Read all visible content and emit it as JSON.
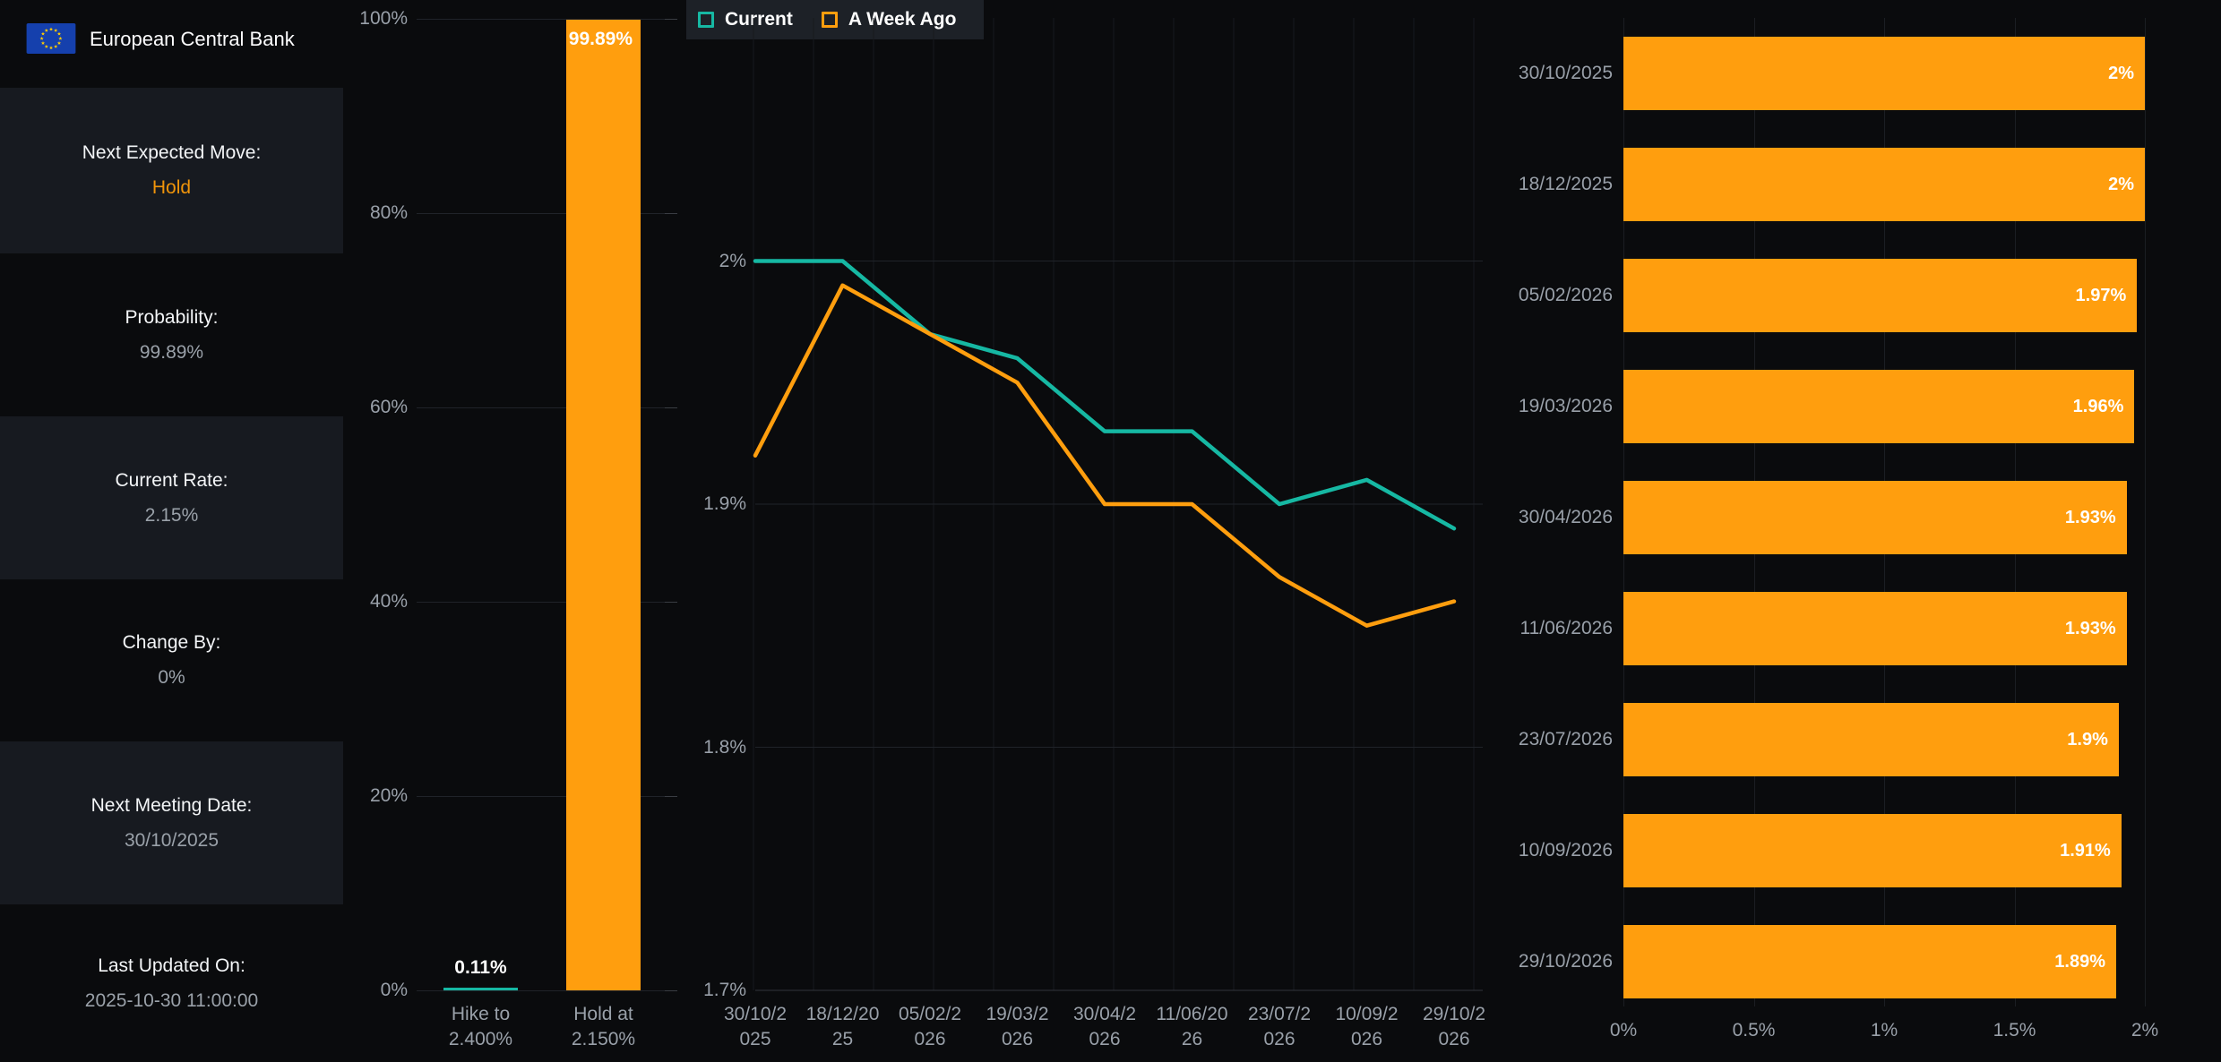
{
  "header": {
    "title": "European Central Bank",
    "flag_icon": "eu-flag-icon"
  },
  "sidebar": {
    "rows": [
      {
        "label": "Next Expected Move:",
        "value": "Hold",
        "value_color": "orange"
      },
      {
        "label": "Probability:",
        "value": "99.89%"
      },
      {
        "label": "Current Rate:",
        "value": "2.15%"
      },
      {
        "label": "Change By:",
        "value": "0%"
      },
      {
        "label": "Next Meeting Date:",
        "value": "30/10/2025"
      },
      {
        "label": "Last Updated On:",
        "value": "2025-10-30 11:00:00"
      }
    ]
  },
  "colors": {
    "teal": "#16b8a3",
    "orange": "#ff9e0e",
    "hold_orange": "#f0940a",
    "page_bg": "#0a0b0d",
    "panel_bg": "#171a20",
    "legend_bg": "#1d2127",
    "white_text": "#f3f5f7",
    "gray_text": "#9aa1a9"
  },
  "chart_data": [
    {
      "id": "next-move-probability",
      "type": "bar",
      "title": "",
      "categories": [
        "Hike to 2.400%",
        "Hold at 2.150%"
      ],
      "category_lines": [
        [
          "Hike to",
          "2.400%"
        ],
        [
          "Hold at",
          "2.150%"
        ]
      ],
      "values": [
        0.11,
        99.89
      ],
      "value_labels": [
        "0.11%",
        "99.89%"
      ],
      "bar_colors": [
        "#16b8a3",
        "#ff9e0e"
      ],
      "y_axis_labels": [
        "100%",
        "80%",
        "60%",
        "40%",
        "20%",
        "0%"
      ],
      "ylim": [
        0,
        100
      ],
      "grid": true
    },
    {
      "id": "rate-expectation-lines",
      "type": "line",
      "title": "",
      "x_labels_wrapped": [
        [
          "30/10/2",
          "025"
        ],
        [
          "18/12/20",
          "25"
        ],
        [
          "05/02/2",
          "026"
        ],
        [
          "19/03/2",
          "026"
        ],
        [
          "30/04/2",
          "026"
        ],
        [
          "11/06/20",
          "26"
        ],
        [
          "23/07/2",
          "026"
        ],
        [
          "10/09/2",
          "026"
        ],
        [
          "29/10/2",
          "026"
        ]
      ],
      "x_categories": [
        "30/10/2025",
        "18/12/2025",
        "05/02/2026",
        "19/03/2026",
        "30/04/2026",
        "11/06/2026",
        "23/07/2026",
        "10/09/2026",
        "29/10/2026"
      ],
      "series": [
        {
          "name": "Current",
          "color": "#16b8a3",
          "values": [
            2.0,
            2.0,
            1.97,
            1.96,
            1.93,
            1.93,
            1.9,
            1.91,
            1.89
          ]
        },
        {
          "name": "A Week Ago",
          "color": "#ff9e0e",
          "values": [
            1.92,
            1.99,
            1.97,
            1.95,
            1.9,
            1.9,
            1.87,
            1.85,
            1.86
          ]
        }
      ],
      "y_ticks": [
        {
          "label": "2%",
          "value": 2.0
        },
        {
          "label": "1.9%",
          "value": 1.9
        },
        {
          "label": "1.8%",
          "value": 1.8
        },
        {
          "label": "1.7%",
          "value": 1.7
        }
      ],
      "ylim": [
        1.7,
        2.1
      ],
      "grid": true,
      "legend_position": "top-left"
    },
    {
      "id": "meeting-rate-forecast",
      "type": "bar",
      "orientation": "horizontal",
      "title": "",
      "categories": [
        "30/10/2025",
        "18/12/2025",
        "05/02/2026",
        "19/03/2026",
        "30/04/2026",
        "11/06/2026",
        "23/07/2026",
        "10/09/2026",
        "29/10/2026"
      ],
      "values": [
        2,
        2,
        1.97,
        1.96,
        1.93,
        1.93,
        1.9,
        1.91,
        1.89
      ],
      "value_labels": [
        "2%",
        "2%",
        "1.97%",
        "1.96%",
        "1.93%",
        "1.93%",
        "1.9%",
        "1.91%",
        "1.89%"
      ],
      "bar_color": "#ff9e0e",
      "x_ticks": [
        "0%",
        "0.5%",
        "1%",
        "1.5%",
        "2%"
      ],
      "xlim": [
        0,
        2
      ],
      "grid": true
    }
  ]
}
